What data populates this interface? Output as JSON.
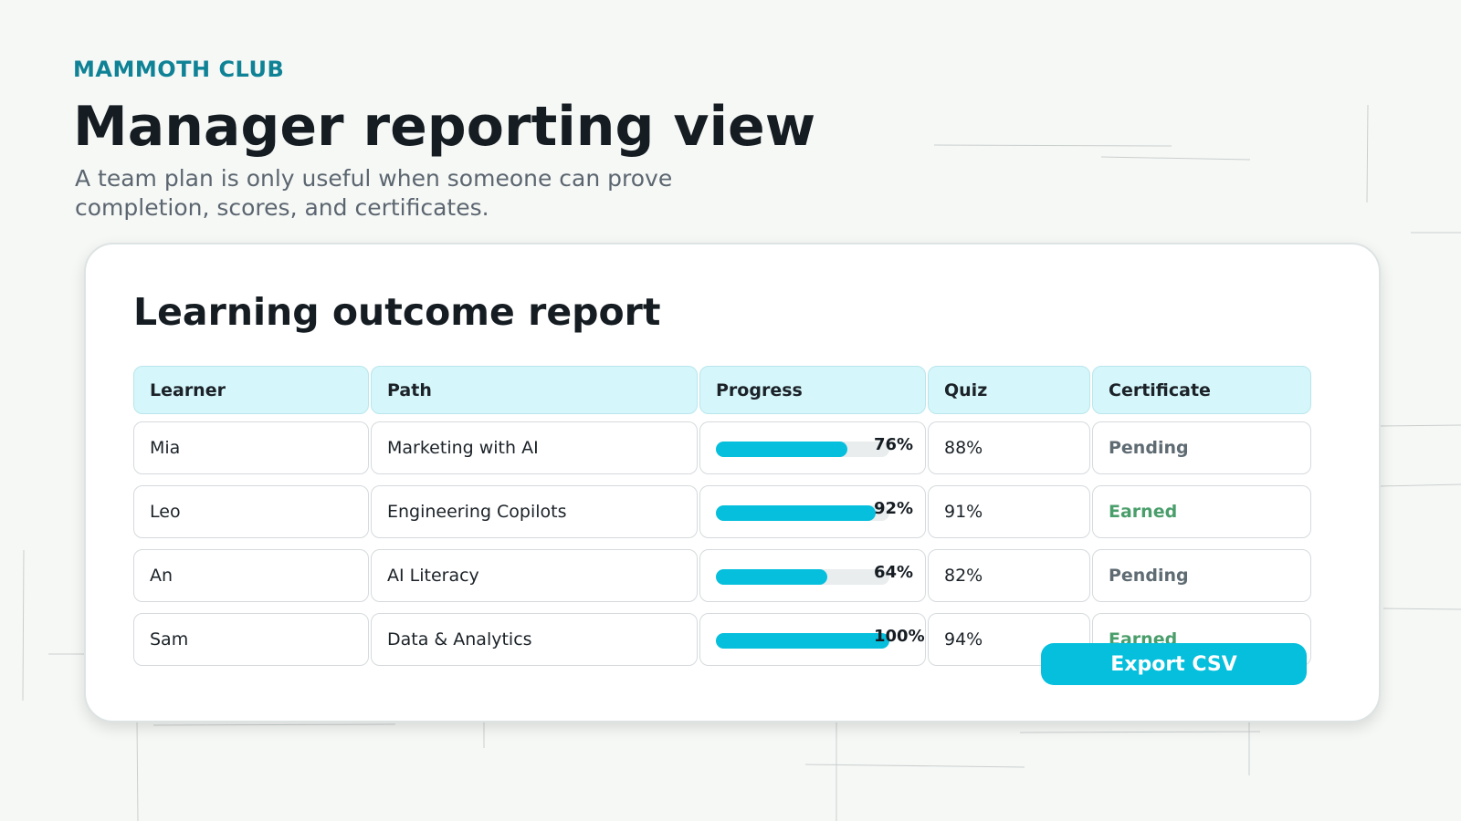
{
  "header": {
    "brand": "MAMMOTH CLUB",
    "title": "Manager reporting view",
    "subtitle": "A team plan is only useful when someone can prove completion, scores, and certificates."
  },
  "report": {
    "title": "Learning outcome report",
    "table": {
      "columns": [
        "Learner",
        "Path",
        "Progress",
        "Quiz",
        "Certificate"
      ],
      "rows": [
        {
          "learner": "Mia",
          "path": "Marketing with AI",
          "progress": {
            "value": 76,
            "label": "76%"
          },
          "quiz": "88%",
          "certificate": "Pending",
          "certificate_color": "#5f6b73"
        },
        {
          "learner": "Leo",
          "path": "Engineering Copilots",
          "progress": {
            "value": 92,
            "label": "92%"
          },
          "quiz": "91%",
          "certificate": "Earned",
          "certificate_color": "#4a9e6b"
        },
        {
          "learner": "An",
          "path": "AI Literacy",
          "progress": {
            "value": 64,
            "label": "64%"
          },
          "quiz": "82%",
          "certificate": "Pending",
          "certificate_color": "#5f6b73"
        },
        {
          "learner": "Sam",
          "path": "Data & Analytics",
          "progress": {
            "value": 100,
            "label": "100%"
          },
          "quiz": "94%",
          "certificate": "Earned",
          "certificate_color": "#4a9e6b"
        }
      ]
    },
    "button": "Export CSV"
  }
}
